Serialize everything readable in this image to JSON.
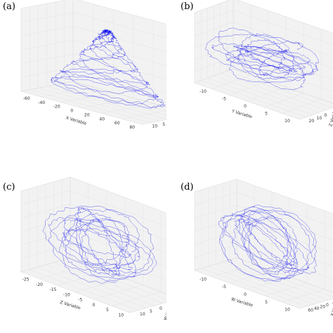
{
  "chart_data": [
    {
      "type": "scatter",
      "mode": "3d-trajectory",
      "panel_label": "(a)",
      "x_axis": {
        "label": "X Variable",
        "ticks": [
          "-60",
          "-40",
          "-20",
          "0",
          "20",
          "40",
          "60",
          "80"
        ],
        "range": [
          -70,
          80
        ]
      },
      "y_axis": {
        "label": "Y Variable",
        "ticks": [
          "10",
          "5",
          "0",
          "-5",
          "-10"
        ],
        "range": [
          -12,
          12
        ]
      },
      "z_axis": {
        "label": "Z Variable",
        "ticks": [
          "20",
          "15",
          "10",
          "5",
          "0",
          "-5",
          "-10",
          "-15",
          "-20",
          "-25"
        ],
        "range": [
          -28,
          22
        ]
      },
      "grid": true,
      "line_color": "#0000ee"
    },
    {
      "type": "scatter",
      "mode": "3d-trajectory",
      "panel_label": "(b)",
      "x_axis": {
        "label": "Y Variable",
        "ticks": [
          "-10",
          "-5",
          "0",
          "5",
          "10"
        ],
        "range": [
          -12,
          12
        ]
      },
      "y_axis": {
        "label": "Z Variable",
        "ticks": [
          "20",
          "10",
          "0",
          "-10",
          "-20"
        ],
        "range": [
          -28,
          22
        ]
      },
      "z_axis": {
        "label": "W Variable",
        "ticks": [
          "10",
          "5",
          "0",
          "-5",
          "-10"
        ],
        "range": [
          -12,
          12
        ]
      },
      "grid": true,
      "line_color": "#0000ee"
    },
    {
      "type": "scatter",
      "mode": "3d-trajectory",
      "panel_label": "(c)",
      "x_axis": {
        "label": "Z Variable",
        "ticks": [
          "-25",
          "-20",
          "-15",
          "-10",
          "-5",
          "0",
          "5",
          "10"
        ],
        "range": [
          -28,
          12
        ]
      },
      "y_axis": {
        "label": "W Variable",
        "ticks": [
          "10",
          "5",
          "0",
          "-5",
          "-10"
        ],
        "range": [
          -12,
          12
        ]
      },
      "z_axis": {
        "label": "X Variable",
        "ticks": [
          "60",
          "40",
          "20",
          "0",
          "-20",
          "-40",
          "-60"
        ],
        "range": [
          -70,
          80
        ]
      },
      "grid": true,
      "line_color": "#0000ee"
    },
    {
      "type": "scatter",
      "mode": "3d-trajectory",
      "panel_label": "(d)",
      "x_axis": {
        "label": "W Variable",
        "ticks": [
          "-10",
          "-5",
          "0",
          "5",
          "10"
        ],
        "range": [
          -12,
          12
        ]
      },
      "y_axis": {
        "label": "X Variable",
        "ticks": [
          "60",
          "40",
          "20",
          "0",
          "-20",
          "-40",
          "-60"
        ],
        "range": [
          -70,
          80
        ]
      },
      "z_axis": {
        "label": "Y Variable",
        "ticks": [
          "10",
          "5",
          "0",
          "-5",
          "-10"
        ],
        "range": [
          -12,
          12
        ]
      },
      "grid": true,
      "line_color": "#0000ee"
    }
  ]
}
